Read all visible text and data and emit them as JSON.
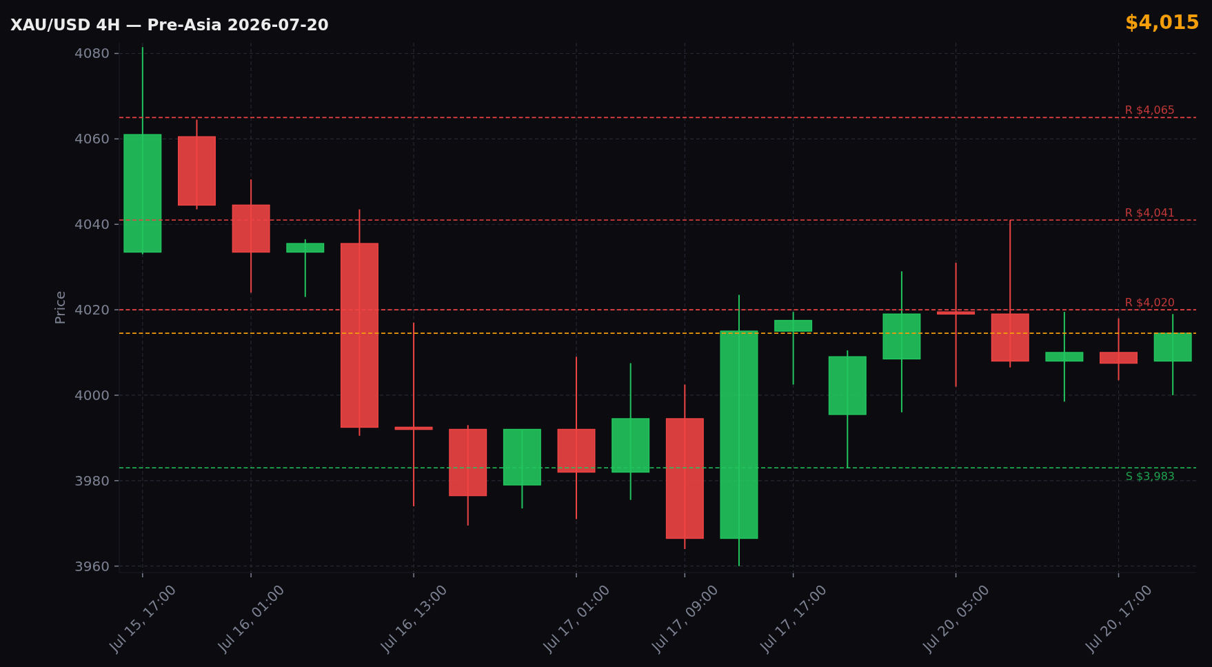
{
  "chart_data": {
    "type": "candlestick",
    "title": "XAU/USD 4H — Pre-Asia 2026-07-20",
    "ylabel": "Price",
    "annotations": [
      "$4,015"
    ],
    "categories": [
      "Jul 15, 17:00",
      null,
      "Jul 16, 01:00",
      null,
      null,
      "Jul 16, 13:00",
      null,
      null,
      "Jul 17, 01:00",
      null,
      "Jul 17, 09:00",
      null,
      "Jul 17, 17:00",
      null,
      null,
      "Jul 20, 05:00",
      null,
      null,
      "Jul 20, 17:00",
      null
    ],
    "ohlc": [
      [
        4033.5,
        4081.5,
        4033,
        4061
      ],
      [
        4060.5,
        4064.5,
        4043.5,
        4044.5
      ],
      [
        4044.5,
        4050.5,
        4024,
        4033.5
      ],
      [
        4033.5,
        4036.5,
        4023,
        4035.5
      ],
      [
        4035.5,
        4043.5,
        3990.5,
        3992.5
      ],
      [
        3992.5,
        4017,
        3974,
        3992
      ],
      [
        3992,
        3993,
        3969.5,
        3976.5
      ],
      [
        3979,
        3992,
        3973.5,
        3992
      ],
      [
        3992,
        4009,
        3971,
        3982
      ],
      [
        3982,
        4007.5,
        3975.5,
        3994.5
      ],
      [
        3994.5,
        4002.5,
        3964,
        3966.5
      ],
      [
        3966.5,
        4023.5,
        3960,
        4015
      ],
      [
        4015,
        4019.5,
        4002.5,
        4017.5
      ],
      [
        3995.5,
        4010.5,
        3983,
        4009
      ],
      [
        4008.5,
        4029,
        3996,
        4019
      ],
      [
        4019.5,
        4031,
        4002,
        4019
      ],
      [
        4019,
        4041,
        4006.5,
        4008
      ],
      [
        4008,
        4019.5,
        3998.5,
        4010
      ],
      [
        4010,
        4018,
        4003.5,
        4007.5
      ],
      [
        4008,
        4019,
        4000,
        4014.5
      ]
    ],
    "colors": [
      "#22c55e",
      "#ef4444",
      "#ef4444",
      "#22c55e",
      "#ef4444",
      "#ef4444",
      "#ef4444",
      "#22c55e",
      "#ef4444",
      "#22c55e",
      "#ef4444",
      "#22c55e",
      "#22c55e",
      "#22c55e",
      "#22c55e",
      "#ef4444",
      "#ef4444",
      "#22c55e",
      "#ef4444",
      "#22c55e"
    ],
    "ylim": [
      3958.5,
      4082.5
    ],
    "yticks": [
      3960,
      3980,
      4000,
      4020,
      4040,
      4060,
      4080
    ],
    "grid": true,
    "ref_lines": [
      {
        "axis": "y",
        "value": 4065,
        "label": "R $4,065",
        "color": "#ef4444",
        "line_style": "dashed"
      },
      {
        "axis": "y",
        "value": 4041,
        "label": "R $4,041",
        "color": "#ef4444",
        "line_style": "dashed"
      },
      {
        "axis": "y",
        "value": 4020,
        "label": "R $4,020",
        "color": "#ef4444",
        "line_style": "dashed"
      },
      {
        "axis": "y",
        "value": 4014.5,
        "color": "#f59e0b",
        "line_style": "dashed"
      },
      {
        "axis": "y",
        "value": 3983,
        "label": "S $3,983",
        "color": "#22c55e",
        "line_style": "dashed"
      }
    ]
  }
}
